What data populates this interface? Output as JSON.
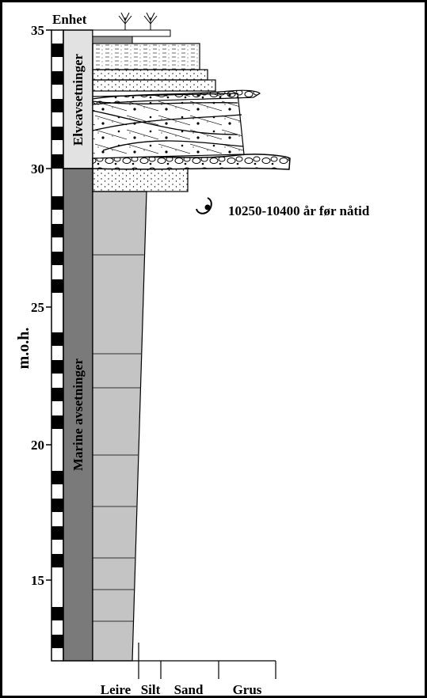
{
  "header": {
    "unit_label": "Enhet"
  },
  "axis": {
    "label": "m.o.h.",
    "ticks": [
      "35",
      "30",
      "25",
      "20",
      "15"
    ]
  },
  "units": [
    "Elveavsetninger",
    "Marine avsetninger"
  ],
  "annotation": "10250-10400 år før nåtid",
  "grain_sizes": [
    "Leire",
    "Silt",
    "Sand",
    "Grus"
  ]
}
